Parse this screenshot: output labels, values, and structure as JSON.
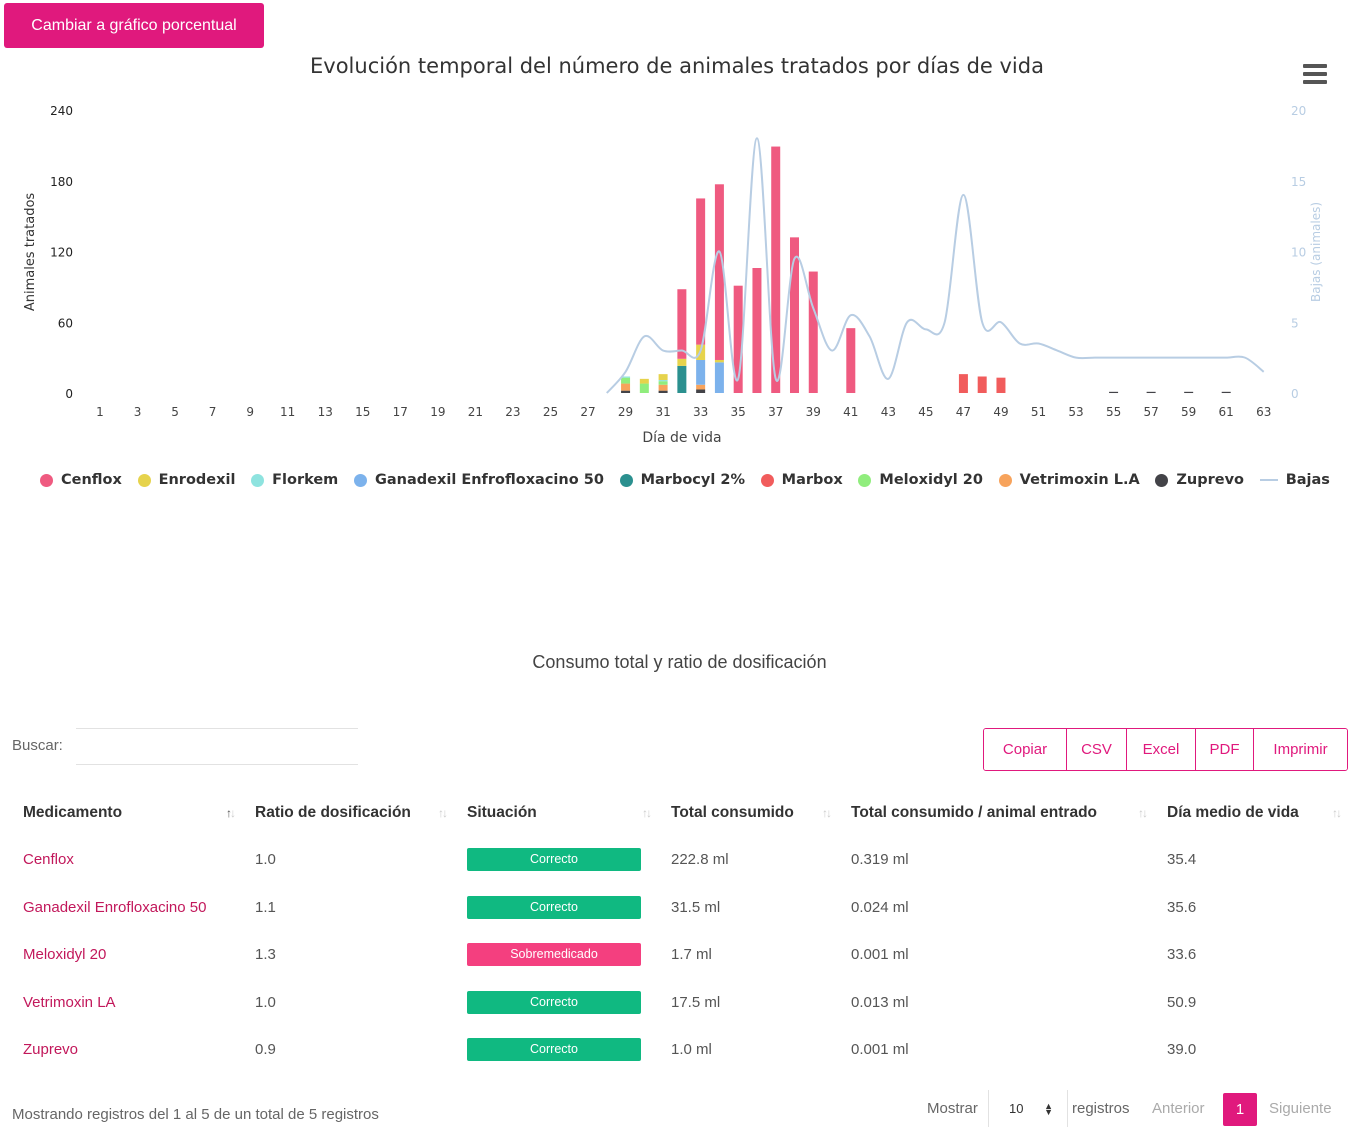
{
  "toggle_button": {
    "label": "Cambiar a gráfico porcentual"
  },
  "chart_data": {
    "type": "bar",
    "stacked": true,
    "title": "Evolución temporal del número de animales tratados por días de vida",
    "xlabel": "Día de vida",
    "ylabel": "Animales tratados",
    "ylabel2": "Bajas (animales)",
    "ylim": [
      0,
      240
    ],
    "y2lim": [
      0,
      20
    ],
    "y_ticks": [
      "0",
      "60",
      "120",
      "180",
      "240"
    ],
    "y2_ticks": [
      "0",
      "5",
      "10",
      "15",
      "20"
    ],
    "x_ticks": [
      "1",
      "3",
      "5",
      "7",
      "9",
      "11",
      "13",
      "15",
      "17",
      "19",
      "21",
      "23",
      "25",
      "27",
      "29",
      "31",
      "33",
      "35",
      "37",
      "39",
      "41",
      "43",
      "45",
      "47",
      "49",
      "51",
      "53",
      "55",
      "57",
      "59",
      "61",
      "63"
    ],
    "legend_position": "bottom",
    "grid": false,
    "series": [
      {
        "name": "Cenflox",
        "color": "#ef5a80",
        "points": [
          [
            32,
            59
          ],
          [
            33,
            124
          ],
          [
            34,
            149
          ],
          [
            35,
            91
          ],
          [
            36,
            106
          ],
          [
            37,
            209
          ],
          [
            38,
            132
          ],
          [
            39,
            103
          ],
          [
            41,
            55
          ]
        ]
      },
      {
        "name": "Enrodexil",
        "color": "#e6d34c",
        "points": [
          [
            30,
            4
          ],
          [
            31,
            5
          ],
          [
            32,
            6
          ],
          [
            33,
            13
          ],
          [
            34,
            2
          ]
        ]
      },
      {
        "name": "Florkem",
        "color": "#8ee3df",
        "points": [
          [
            29,
            1
          ],
          [
            31,
            1
          ]
        ]
      },
      {
        "name": "Ganadexil Enfrofloxacino 50",
        "color": "#7cb2ec",
        "points": [
          [
            33,
            21
          ],
          [
            34,
            26
          ]
        ]
      },
      {
        "name": "Marbocyl 2%",
        "color": "#2b908f",
        "points": [
          [
            32,
            23
          ]
        ]
      },
      {
        "name": "Marbox",
        "color": "#f15c5c",
        "points": [
          [
            47,
            16
          ],
          [
            48,
            14
          ],
          [
            49,
            13
          ]
        ]
      },
      {
        "name": "Meloxidyl 20",
        "color": "#90ed7d",
        "points": [
          [
            29,
            5
          ],
          [
            30,
            8
          ],
          [
            31,
            3
          ]
        ]
      },
      {
        "name": "Vetrimoxin L.A",
        "color": "#f7a35c",
        "points": [
          [
            29,
            6
          ],
          [
            31,
            5
          ],
          [
            33,
            4
          ]
        ]
      },
      {
        "name": "Zuprevo",
        "color": "#434348",
        "points": [
          [
            29,
            2
          ],
          [
            31,
            2
          ],
          [
            33,
            3
          ],
          [
            55,
            1
          ],
          [
            57,
            1
          ],
          [
            59,
            1
          ],
          [
            61,
            1
          ]
        ]
      },
      {
        "name": "Bajas",
        "type": "line",
        "axis": "secondary",
        "color": "#b8cde3",
        "points": [
          [
            28,
            0
          ],
          [
            29,
            1.5
          ],
          [
            30,
            4
          ],
          [
            31,
            3
          ],
          [
            32,
            3
          ],
          [
            33,
            3
          ],
          [
            34,
            10
          ],
          [
            35,
            1
          ],
          [
            36,
            18
          ],
          [
            37,
            1
          ],
          [
            38,
            9.5
          ],
          [
            39,
            6
          ],
          [
            40,
            3
          ],
          [
            41,
            5.5
          ],
          [
            42,
            4
          ],
          [
            43,
            1
          ],
          [
            44,
            5
          ],
          [
            45,
            4.5
          ],
          [
            46,
            5
          ],
          [
            47,
            14
          ],
          [
            48,
            5
          ],
          [
            49,
            5
          ],
          [
            50,
            3.5
          ],
          [
            51,
            3.5
          ],
          [
            52,
            3
          ],
          [
            53,
            2.5
          ],
          [
            54,
            2.5
          ],
          [
            55,
            2.5
          ],
          [
            56,
            2.5
          ],
          [
            57,
            2.5
          ],
          [
            58,
            2.5
          ],
          [
            59,
            2.5
          ],
          [
            60,
            2.5
          ],
          [
            61,
            2.5
          ],
          [
            62,
            2.5
          ],
          [
            63,
            1.5
          ]
        ]
      }
    ]
  },
  "table": {
    "title": "Consumo total y ratio de dosificación",
    "search_label": "Buscar:",
    "search_value": "",
    "export_buttons": [
      "Copiar",
      "CSV",
      "Excel",
      "PDF",
      "Imprimir"
    ],
    "headers": [
      "Medicamento",
      "Ratio de dosificación",
      "Situación",
      "Total consumido",
      "Total consumido / animal entrado",
      "Día medio de vida"
    ],
    "rows": [
      {
        "medicamento": "Cenflox",
        "ratio": "1.0",
        "situacion": "Correcto",
        "status_color": "#10b981",
        "total": "222.8 ml",
        "por_animal": "0.319 ml",
        "dia_medio": "35.4"
      },
      {
        "medicamento": "Ganadexil Enrofloxacino 50",
        "ratio": "1.1",
        "situacion": "Correcto",
        "status_color": "#10b981",
        "total": "31.5 ml",
        "por_animal": "0.024 ml",
        "dia_medio": "35.6"
      },
      {
        "medicamento": "Meloxidyl 20",
        "ratio": "1.3",
        "situacion": "Sobremedicado",
        "status_color": "#f43f7f",
        "total": "1.7 ml",
        "por_animal": "0.001 ml",
        "dia_medio": "33.6"
      },
      {
        "medicamento": "Vetrimoxin LA",
        "ratio": "1.0",
        "situacion": "Correcto",
        "status_color": "#10b981",
        "total": "17.5 ml",
        "por_animal": "0.013 ml",
        "dia_medio": "50.9"
      },
      {
        "medicamento": "Zuprevo",
        "ratio": "0.9",
        "situacion": "Correcto",
        "status_color": "#10b981",
        "total": "1.0 ml",
        "por_animal": "0.001 ml",
        "dia_medio": "39.0"
      }
    ],
    "info": "Mostrando registros del 1 al 5 de un total de 5 registros",
    "show_label": "Mostrar",
    "page_length": "10",
    "records_label": "registros",
    "prev_label": "Anterior",
    "current_page": "1",
    "next_label": "Siguiente"
  },
  "colors": {
    "accent": "#e0197d",
    "link": "#c2185b"
  }
}
